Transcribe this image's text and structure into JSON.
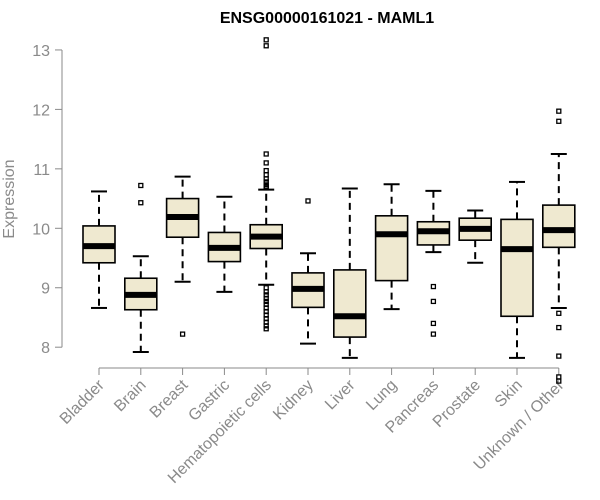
{
  "chart_data": {
    "type": "boxplot",
    "title": "ENSG00000161021 - MAML1",
    "xlabel": "",
    "ylabel": "Expression",
    "ylim": [
      7.65,
      13.1
    ],
    "yticks": [
      8,
      9,
      10,
      11,
      12,
      13
    ],
    "colors": {
      "box_fill": "#efe9d0",
      "stroke": "#000000",
      "axis": "#8a8a8a"
    },
    "categories": [
      "Bladder",
      "Brain",
      "Breast",
      "Gastric",
      "Hematopoietic cells",
      "Kidney",
      "Liver",
      "Lung",
      "Pancreas",
      "Prostate",
      "Skin",
      "Unknown / Other"
    ],
    "boxes": [
      {
        "category": "Bladder",
        "q1": 9.42,
        "median": 9.7,
        "q3": 10.04,
        "whisker_low": 8.66,
        "whisker_high": 10.62,
        "outliers": []
      },
      {
        "category": "Brain",
        "q1": 8.63,
        "median": 8.88,
        "q3": 9.16,
        "whisker_low": 7.92,
        "whisker_high": 9.53,
        "outliers": [
          10.43,
          10.72
        ]
      },
      {
        "category": "Breast",
        "q1": 9.85,
        "median": 10.19,
        "q3": 10.5,
        "whisker_low": 9.1,
        "whisker_high": 10.87,
        "outliers": [
          8.22
        ]
      },
      {
        "category": "Gastric",
        "q1": 9.44,
        "median": 9.67,
        "q3": 9.93,
        "whisker_low": 8.93,
        "whisker_high": 10.53,
        "outliers": []
      },
      {
        "category": "Hematopoietic cells",
        "q1": 9.66,
        "median": 9.86,
        "q3": 10.06,
        "whisker_low": 9.05,
        "whisker_high": 10.65,
        "outliers": [
          13.17,
          13.07,
          11.25,
          11.1,
          10.97,
          10.9,
          10.83,
          10.78,
          10.73,
          10.7,
          10.68,
          9.0,
          8.93,
          8.88,
          8.82,
          8.77,
          8.72,
          8.66,
          8.6,
          8.54,
          8.48,
          8.42,
          8.36,
          8.31
        ]
      },
      {
        "category": "Kidney",
        "q1": 8.67,
        "median": 8.98,
        "q3": 9.25,
        "whisker_low": 8.06,
        "whisker_high": 9.58,
        "outliers": [
          10.46
        ]
      },
      {
        "category": "Liver",
        "q1": 8.17,
        "median": 8.52,
        "q3": 9.3,
        "whisker_low": 7.82,
        "whisker_high": 10.67,
        "outliers": []
      },
      {
        "category": "Lung",
        "q1": 9.12,
        "median": 9.9,
        "q3": 10.21,
        "whisker_low": 8.64,
        "whisker_high": 10.74,
        "outliers": []
      },
      {
        "category": "Pancreas",
        "q1": 9.72,
        "median": 9.95,
        "q3": 10.11,
        "whisker_low": 9.6,
        "whisker_high": 10.63,
        "outliers": [
          9.02,
          8.77,
          8.4,
          8.22
        ]
      },
      {
        "category": "Prostate",
        "q1": 9.8,
        "median": 9.99,
        "q3": 10.17,
        "whisker_low": 9.42,
        "whisker_high": 10.3,
        "outliers": []
      },
      {
        "category": "Skin",
        "q1": 8.52,
        "median": 9.65,
        "q3": 10.15,
        "whisker_low": 7.82,
        "whisker_high": 10.78,
        "outliers": []
      },
      {
        "category": "Unknown / Other",
        "q1": 9.68,
        "median": 9.97,
        "q3": 10.39,
        "whisker_low": 8.66,
        "whisker_high": 11.25,
        "outliers": [
          11.97,
          11.8,
          8.57,
          8.33,
          7.85,
          7.5,
          7.43
        ]
      }
    ]
  }
}
